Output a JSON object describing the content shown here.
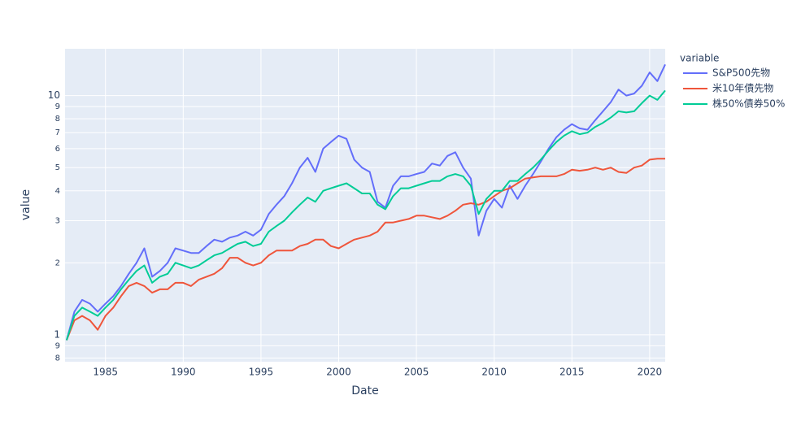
{
  "chart_data": {
    "type": "line",
    "xlabel": "Date",
    "ylabel": "value",
    "legend_title": "variable",
    "legend": "right",
    "yscale": "log",
    "grid": true,
    "xlim": [
      1982.4,
      2021.0
    ],
    "xticks": [
      1985,
      1990,
      1995,
      2000,
      2005,
      2010,
      2015,
      2020
    ],
    "ylim": [
      0.772,
      15.7
    ],
    "yticks": [
      {
        "value": 0.8,
        "label": "8"
      },
      {
        "value": 0.9,
        "label": "9"
      },
      1,
      2,
      3,
      4,
      5,
      6,
      7,
      8,
      9,
      10
    ],
    "x": [
      1982.5,
      1983,
      1983.5,
      1984,
      1984.5,
      1985,
      1985.5,
      1986,
      1986.5,
      1987,
      1987.5,
      1988,
      1988.5,
      1989,
      1989.5,
      1990,
      1990.5,
      1991,
      1991.5,
      1992,
      1992.5,
      1993,
      1993.5,
      1994,
      1994.5,
      1995,
      1995.5,
      1996,
      1996.5,
      1997,
      1997.5,
      1998,
      1998.5,
      1999,
      1999.5,
      2000,
      2000.5,
      2001,
      2001.5,
      2002,
      2002.5,
      2003,
      2003.5,
      2004,
      2004.5,
      2005,
      2005.5,
      2006,
      2006.5,
      2007,
      2007.5,
      2008,
      2008.5,
      2009,
      2009.5,
      2010,
      2010.5,
      2011,
      2011.5,
      2012,
      2012.5,
      2013,
      2013.5,
      2014,
      2014.5,
      2015,
      2015.5,
      2016,
      2016.5,
      2017,
      2017.5,
      2018,
      2018.5,
      2019,
      2019.5,
      2020,
      2020.5,
      2021
    ],
    "series": [
      {
        "name": "S&P500先物",
        "color": "#636efa",
        "values": [
          0.95,
          1.25,
          1.4,
          1.35,
          1.25,
          1.35,
          1.45,
          1.6,
          1.8,
          2.0,
          2.3,
          1.75,
          1.85,
          2.0,
          2.3,
          2.25,
          2.2,
          2.2,
          2.35,
          2.5,
          2.45,
          2.55,
          2.6,
          2.7,
          2.6,
          2.75,
          3.2,
          3.5,
          3.8,
          4.3,
          5.0,
          5.5,
          4.8,
          6.0,
          6.4,
          6.8,
          6.6,
          5.4,
          5.0,
          4.8,
          3.6,
          3.4,
          4.2,
          4.6,
          4.6,
          4.7,
          4.8,
          5.2,
          5.1,
          5.6,
          5.8,
          5.0,
          4.5,
          2.6,
          3.3,
          3.7,
          3.4,
          4.2,
          3.7,
          4.2,
          4.7,
          5.3,
          6.0,
          6.7,
          7.2,
          7.6,
          7.3,
          7.2,
          7.9,
          8.6,
          9.4,
          10.6,
          10.0,
          10.2,
          11.0,
          12.5,
          11.5,
          13.5
        ]
      },
      {
        "name": "米10年債先物",
        "color": "#EF553B",
        "values": [
          0.95,
          1.15,
          1.2,
          1.15,
          1.05,
          1.2,
          1.3,
          1.45,
          1.6,
          1.65,
          1.6,
          1.5,
          1.55,
          1.55,
          1.65,
          1.65,
          1.6,
          1.7,
          1.75,
          1.8,
          1.9,
          2.1,
          2.1,
          2.0,
          1.95,
          2.0,
          2.15,
          2.25,
          2.25,
          2.25,
          2.35,
          2.4,
          2.5,
          2.5,
          2.35,
          2.3,
          2.4,
          2.5,
          2.55,
          2.6,
          2.7,
          2.95,
          2.95,
          3.0,
          3.05,
          3.15,
          3.15,
          3.1,
          3.05,
          3.15,
          3.3,
          3.5,
          3.55,
          3.5,
          3.6,
          3.8,
          4.0,
          4.1,
          4.3,
          4.5,
          4.55,
          4.6,
          4.6,
          4.6,
          4.7,
          4.9,
          4.85,
          4.9,
          5.0,
          4.9,
          5.0,
          4.8,
          4.75,
          5.0,
          5.1,
          5.4,
          5.45,
          5.45
        ]
      },
      {
        "name": "株50%債券50%",
        "color": "#00cc96",
        "values": [
          0.95,
          1.2,
          1.3,
          1.25,
          1.2,
          1.3,
          1.4,
          1.55,
          1.7,
          1.85,
          1.95,
          1.65,
          1.75,
          1.8,
          2.0,
          1.95,
          1.9,
          1.95,
          2.05,
          2.15,
          2.2,
          2.3,
          2.4,
          2.45,
          2.35,
          2.4,
          2.7,
          2.85,
          3.0,
          3.25,
          3.5,
          3.75,
          3.6,
          4.0,
          4.1,
          4.2,
          4.3,
          4.1,
          3.9,
          3.9,
          3.5,
          3.35,
          3.8,
          4.1,
          4.1,
          4.2,
          4.3,
          4.4,
          4.4,
          4.6,
          4.7,
          4.6,
          4.2,
          3.2,
          3.7,
          4.0,
          4.0,
          4.4,
          4.4,
          4.7,
          5.0,
          5.4,
          5.9,
          6.4,
          6.8,
          7.1,
          6.9,
          7.0,
          7.4,
          7.7,
          8.1,
          8.6,
          8.5,
          8.6,
          9.3,
          10.0,
          9.6,
          10.5
        ]
      }
    ]
  }
}
